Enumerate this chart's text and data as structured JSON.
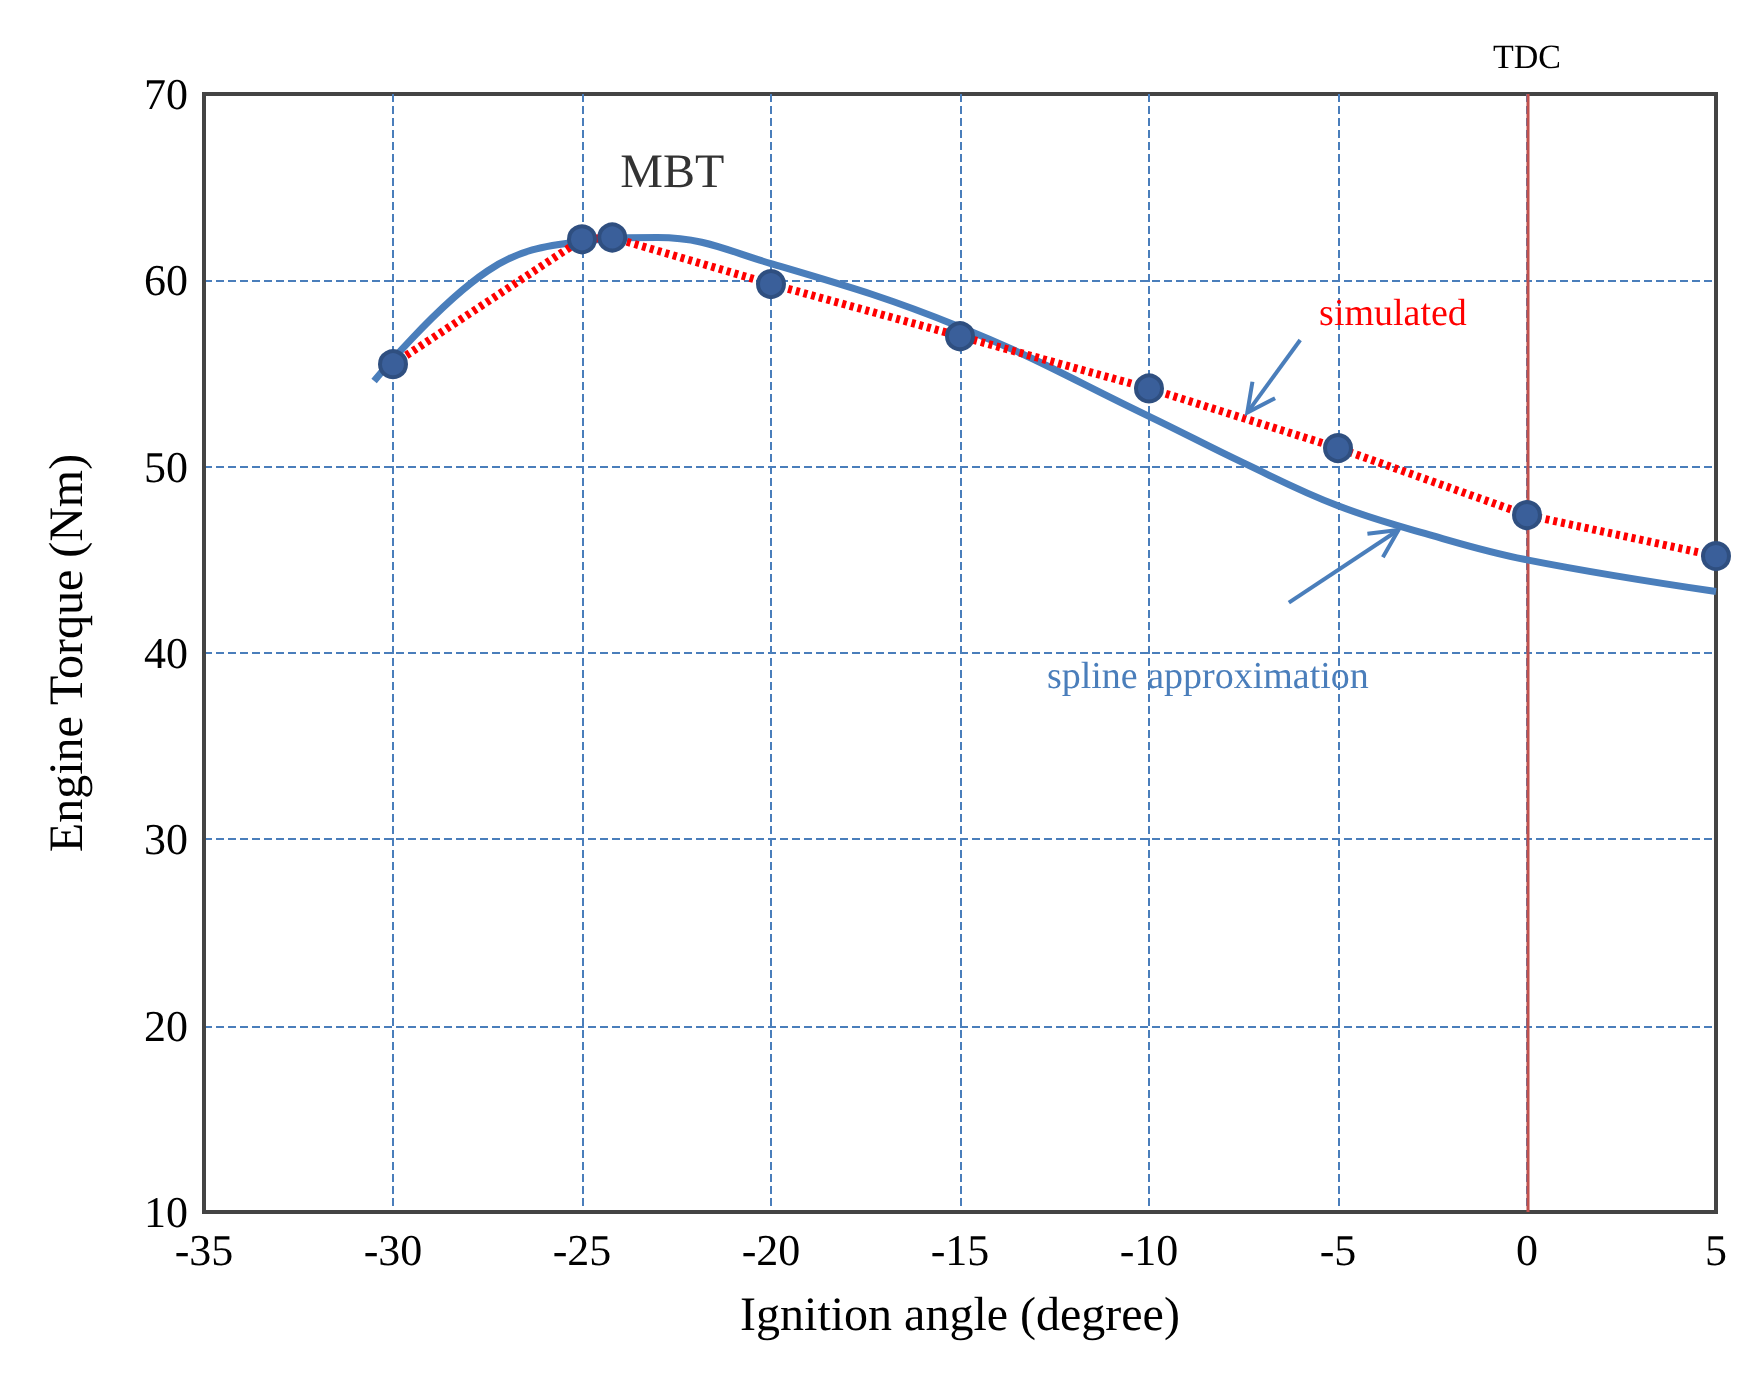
{
  "chart_data": {
    "type": "line",
    "xlabel": "Ignition angle (degree)",
    "ylabel": "Engine Torque (Nm)",
    "xlim": [
      -35,
      5
    ],
    "xticks": [
      -35,
      -30,
      -25,
      -20,
      -15,
      -10,
      -5,
      0,
      5
    ],
    "ylim": [
      10,
      70
    ],
    "yticks": [
      10,
      20,
      30,
      40,
      50,
      60,
      70
    ],
    "grid": true,
    "legend": false,
    "series": [
      {
        "name": "simulated",
        "color": "#ff0000",
        "line_style": "dotted",
        "marker": "circle",
        "x": [
          -30,
          -25,
          -24.2,
          -20,
          -15,
          -10,
          -5,
          0,
          5
        ],
        "values": [
          55.5,
          62.2,
          62.3,
          59.8,
          57.0,
          54.2,
          51.0,
          47.4,
          45.2
        ]
      },
      {
        "name": "spline approximation",
        "color": "#4a7ebb",
        "line_style": "solid",
        "marker": "none",
        "x": [
          -30.5,
          -27.5,
          -25,
          -23,
          -20,
          -15,
          -10,
          -7.5,
          -5,
          -2.5,
          0,
          5
        ],
        "values": [
          54.6,
          60.5,
          62.1,
          62.3,
          60.9,
          57.5,
          52.7,
          50.2,
          47.9,
          46.3,
          45.0,
          43.3
        ]
      }
    ],
    "ref_lines": [
      {
        "axis": "x",
        "value": 0,
        "label": "TDC",
        "color": "#c0504d"
      }
    ],
    "annotations": [
      {
        "text": "MBT",
        "x": -24.2,
        "y": 62.3
      }
    ]
  }
}
